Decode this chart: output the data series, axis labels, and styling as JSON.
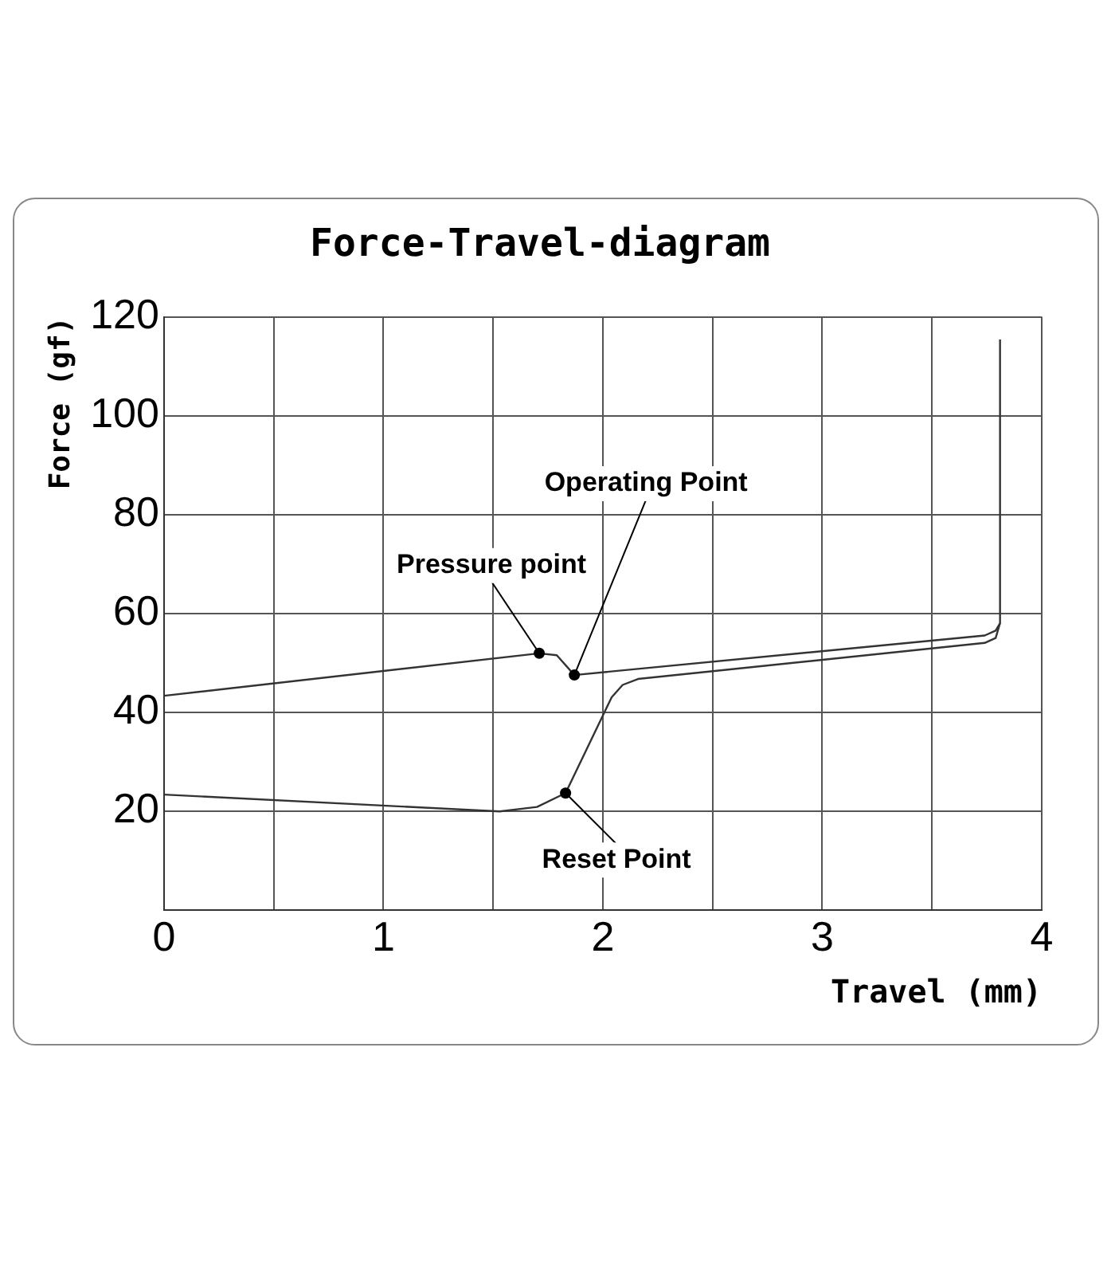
{
  "chart_data": {
    "type": "line",
    "title": "Force-Travel-diagram",
    "xlabel": "Travel (mm)",
    "ylabel": "Force (gf)",
    "series": [
      {
        "color": "#333333",
        "x": [
          0,
          1.71,
          1.79,
          1.87,
          3.74,
          3.79,
          3.81,
          3.81
        ],
        "values": [
          43.3,
          51.9,
          51.5,
          47.5,
          55.5,
          56.5,
          58,
          115.4
        ]
      },
      {
        "color": "#333333",
        "x": [
          3.81,
          3.79,
          3.74,
          2.16,
          2.09,
          2.04,
          1.83,
          1.7,
          1.53,
          0
        ],
        "values": [
          58,
          55,
          54,
          46.7,
          45.5,
          43,
          23.6,
          20.8,
          19.9,
          23.3
        ]
      }
    ],
    "xlim": [
      0,
      4
    ],
    "ylim": [
      0,
      120
    ],
    "xticks": [
      0,
      {
        "value": 0.5,
        "label": null
      },
      1,
      {
        "value": 1.5,
        "label": null
      },
      2,
      {
        "value": 2.5,
        "label": null
      },
      3,
      {
        "value": 3.5,
        "label": null
      },
      4
    ],
    "yticks": [
      {
        "value": 0,
        "label": null
      },
      20,
      40,
      60,
      80,
      100,
      120
    ],
    "grid": true,
    "legend": false,
    "marker": "none",
    "line_style": "solid",
    "annotations": [
      {
        "text": "Pressure point",
        "x": 1.71,
        "y": 51.9
      },
      {
        "text": "Operating Point",
        "x": 1.87,
        "y": 47.5
      },
      {
        "text": "Reset Point",
        "x": 1.83,
        "y": 23.6
      }
    ]
  }
}
